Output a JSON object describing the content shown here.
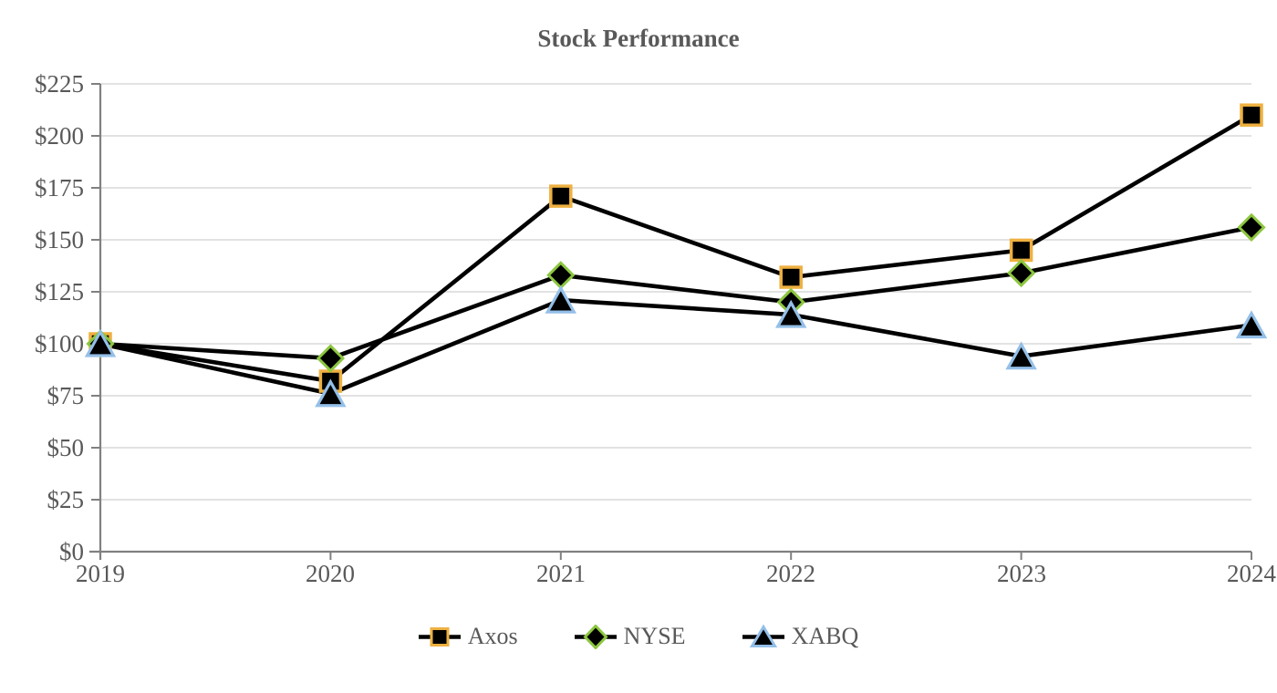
{
  "chart_data": {
    "type": "line",
    "title": "Stock Performance",
    "categories": [
      "2019",
      "2020",
      "2021",
      "2022",
      "2023",
      "2024"
    ],
    "series": [
      {
        "name": "Axos",
        "marker": "square",
        "marker_fill": "#000000",
        "marker_border": "#EEB040",
        "line_color": "#000000",
        "values": [
          100,
          82,
          171,
          132,
          145,
          210
        ]
      },
      {
        "name": "NYSE",
        "marker": "diamond",
        "marker_fill": "#000000",
        "marker_border": "#8CC63F",
        "line_color": "#000000",
        "values": [
          100,
          93,
          133,
          120,
          134,
          156
        ]
      },
      {
        "name": "XABQ",
        "marker": "triangle",
        "marker_fill": "#000000",
        "marker_border": "#94BFE8",
        "line_color": "#000000",
        "values": [
          100,
          76,
          121,
          114,
          94,
          109
        ]
      }
    ],
    "y_axis": {
      "min": 0,
      "max": 225,
      "step": 25,
      "tick_labels": [
        "$225",
        "$200",
        "$175",
        "$150",
        "$125",
        "$100",
        "$75",
        "$50",
        "$25",
        "$0"
      ]
    },
    "x_axis": {
      "tick_labels": [
        "2019",
        "2020",
        "2021",
        "2022",
        "2023",
        "2024"
      ]
    },
    "grid": true,
    "legend_position": "bottom",
    "colors": {
      "background": "#ffffff",
      "grid": "#D9D9D9",
      "axis": "#808080",
      "text": "#595959"
    }
  }
}
